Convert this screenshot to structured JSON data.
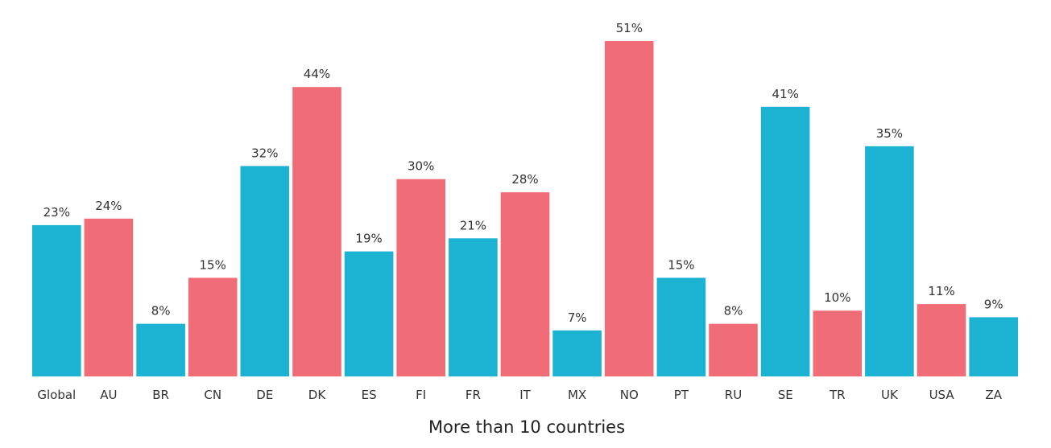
{
  "chart_data": {
    "type": "bar",
    "title": "",
    "xlabel": "More than 10 countries",
    "ylabel": "",
    "ylim": [
      0,
      51
    ],
    "grid": false,
    "categories": [
      "Global",
      "AU",
      "BR",
      "CN",
      "DE",
      "DK",
      "ES",
      "FI",
      "FR",
      "IT",
      "MX",
      "NO",
      "PT",
      "RU",
      "SE",
      "TR",
      "UK",
      "USA",
      "ZA"
    ],
    "values": [
      23,
      24,
      8,
      15,
      32,
      44,
      19,
      30,
      21,
      28,
      7,
      51,
      15,
      8,
      41,
      10,
      35,
      11,
      9
    ],
    "value_labels": [
      "23%",
      "24%",
      "8%",
      "15%",
      "32%",
      "44%",
      "19%",
      "30%",
      "21%",
      "28%",
      "7%",
      "51%",
      "15%",
      "8%",
      "41%",
      "10%",
      "35%",
      "11%",
      "9%"
    ],
    "bar_colors": [
      "#1bb3d1",
      "#f06d78",
      "#1bb3d1",
      "#f06d78",
      "#1bb3d1",
      "#f06d78",
      "#1bb3d1",
      "#f06d78",
      "#1bb3d1",
      "#f06d78",
      "#1bb3d1",
      "#f06d78",
      "#1bb3d1",
      "#f06d78",
      "#1bb3d1",
      "#f06d78",
      "#1bb3d1",
      "#f06d78",
      "#1bb3d1"
    ]
  }
}
